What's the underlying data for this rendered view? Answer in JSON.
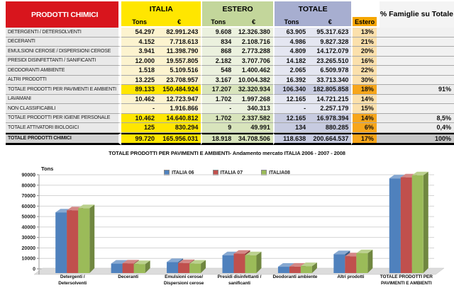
{
  "colors": {
    "red": "#d8151d",
    "yellow": "#ffe600",
    "pyellow": "#fcf3cf",
    "green": "#c3d69b",
    "pgreen": "#ebf1de",
    "tgreen": "#d8e4bc",
    "lavender": "#a7aed0",
    "plavender": "#e4e6f1",
    "tlavender": "#c7cbe0",
    "orange": "#f6a600",
    "porange": "#fbe0ac",
    "torange": "#f7a61b"
  },
  "table": {
    "title": "PRODOTTI CHIMICI",
    "col_groups": {
      "italia": "ITALIA",
      "estero": "ESTERO",
      "totale": "TOTALE"
    },
    "sub": {
      "tons": "Tons",
      "eur": "€",
      "estero": "Estero"
    },
    "famiglie_header": "%\nFamiglie\nsu Totale",
    "rows": [
      {
        "type": "normal",
        "label": "DETERGENTI / DETERSOLVENTI",
        "it_t": "54.297",
        "it_e": "82.991.243",
        "es_t": "9.608",
        "es_e": "12.326.380",
        "to_t": "63.905",
        "to_e": "95.317.623",
        "ep": "13%",
        "fam": ""
      },
      {
        "type": "normal",
        "label": "DECERANTI",
        "it_t": "4.152",
        "it_e": "7.718.613",
        "es_t": "834",
        "es_e": "2.108.716",
        "to_t": "4.986",
        "to_e": "9.827.328",
        "ep": "21%",
        "fam": ""
      },
      {
        "type": "normal",
        "label": "EMULSIONI  CEROSE / DISPERSIONI CEROSE",
        "it_t": "3.941",
        "it_e": "11.398.790",
        "es_t": "868",
        "es_e": "2.773.288",
        "to_t": "4.809",
        "to_e": "14.172.079",
        "ep": "20%",
        "fam": ""
      },
      {
        "type": "normal",
        "label": "PRESIDI DISINFETTANTI / SANIFICANTI",
        "it_t": "12.000",
        "it_e": "19.557.805",
        "es_t": "2.182",
        "es_e": "3.707.706",
        "to_t": "14.182",
        "to_e": "23.265.510",
        "ep": "16%",
        "fam": ""
      },
      {
        "type": "normal",
        "label": "DEODORANTI AMBIENTE",
        "it_t": "1.518",
        "it_e": "5.109.516",
        "es_t": "548",
        "es_e": "1.400.462",
        "to_t": "2.065",
        "to_e": "6.509.978",
        "ep": "22%",
        "fam": ""
      },
      {
        "type": "normal",
        "label": "ALTRI PRODOTTI",
        "it_t": "13.225",
        "it_e": "23.708.957",
        "es_t": "3.167",
        "es_e": "10.004.382",
        "to_t": "16.392",
        "to_e": "33.713.340",
        "ep": "30%",
        "fam": ""
      },
      {
        "type": "total",
        "label": "TOTALE PRODOTTI PER PAVIMENTI E AMBIENTI",
        "it_t": "89.133",
        "it_e": "150.484.924",
        "es_t": "17.207",
        "es_e": "32.320.934",
        "to_t": "106.340",
        "to_e": "182.805.858",
        "ep": "18%",
        "fam": "91%"
      },
      {
        "type": "normal",
        "label": "LAVAMANI",
        "it_t": "10.462",
        "it_e": "12.723.947",
        "es_t": "1.702",
        "es_e": "1.997.268",
        "to_t": "12.165",
        "to_e": "14.721.215",
        "ep": "14%",
        "fam": ""
      },
      {
        "type": "normal",
        "label": "NON CLASSIFICABILI",
        "it_t": "-",
        "it_e": "1.916.866",
        "es_t": "-",
        "es_e": "340.313",
        "to_t": "-",
        "to_e": "2.257.179",
        "ep": "15%",
        "fam": ""
      },
      {
        "type": "total",
        "label": "TOTALE PRODOTTI PER IGIENE PERSONALE",
        "it_t": "10.462",
        "it_e": "14.640.812",
        "es_t": "1.702",
        "es_e": "2.337.582",
        "to_t": "12.165",
        "to_e": "16.978.394",
        "ep": "14%",
        "fam": "8,5%"
      },
      {
        "type": "total",
        "label": "TOTALE ATTIVATORI BIOLOGICI",
        "it_t": "125",
        "it_e": "830.294",
        "es_t": "9",
        "es_e": "49.991",
        "to_t": "134",
        "to_e": "880.285",
        "ep": "6%",
        "fam": "0,4%"
      },
      {
        "type": "grand",
        "label": "TOTALE PRODOTTI CHIMICI",
        "it_t": "99.720",
        "it_e": "165.956.031",
        "es_t": "18.918",
        "es_e": "34.708.506",
        "to_t": "118.638",
        "to_e": "200.664.537",
        "ep": "17%",
        "fam": "100%"
      }
    ]
  },
  "chart_data": {
    "type": "bar",
    "title": "TOTALE PRODOTTI  PER  PAVIMENTI E AMBIENTI- Andamento mercato ITALIA 2006 - 2007 - 2008",
    "y_unit_label": "Tons",
    "xlabel": "",
    "ylabel": "Tons",
    "ylim": [
      0,
      90000
    ],
    "ytick_step": 10000,
    "grid": true,
    "legend_position": "top-center",
    "categories": [
      "Detergenti /\nDetersolventi",
      "Deceranti",
      "Emulsioni cerose/\nDispersioni cerose",
      "Presidi disinfettanti /\nsanificanti",
      "Deodoranti ambiente",
      "Altri prodotti",
      "TOTALE PRODOTTI  PER\nPAVIMENTI E AMBIENTI"
    ],
    "series": [
      {
        "name": "ITALIA 06",
        "color": "#4f81bd",
        "values": [
          54000,
          5000,
          6500,
          13000,
          2000,
          14000,
          86500
        ]
      },
      {
        "name": "ITALIA 07",
        "color": "#c0504d",
        "values": [
          56000,
          5200,
          5500,
          14500,
          2100,
          12000,
          87500
        ]
      },
      {
        "name": "ITALIA08",
        "color": "#9bbb59",
        "values": [
          58000,
          4600,
          5000,
          13000,
          2600,
          15000,
          89500
        ]
      }
    ]
  }
}
